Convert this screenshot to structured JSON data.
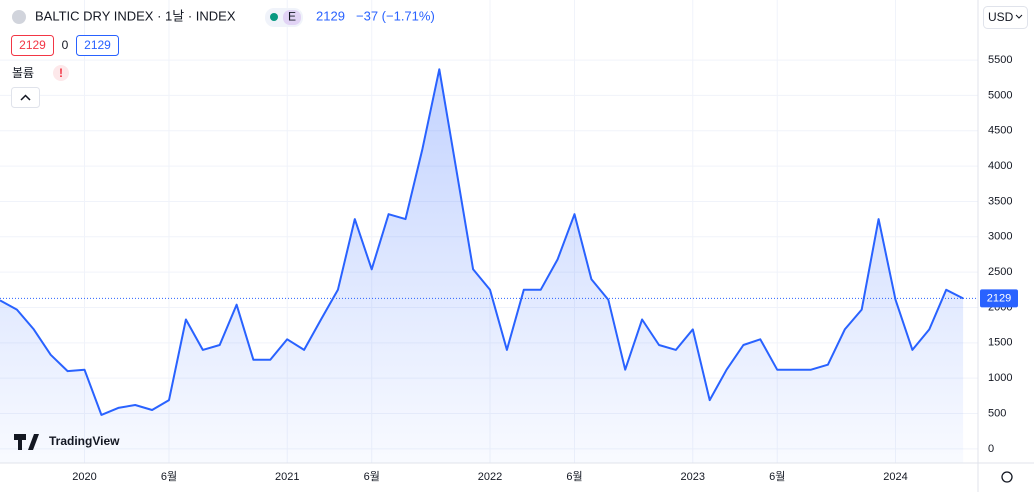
{
  "header": {
    "symbol": "BALTIC DRY INDEX · 1날 · INDEX",
    "badge": "E",
    "last": "2129",
    "change": "−37 (−1.71%)",
    "sell": "2129",
    "spread": "0",
    "buy": "2129",
    "volume": "볼륨",
    "alert": "!",
    "currency": "USD",
    "logo": "TradingView"
  },
  "chart_data": {
    "type": "area",
    "color": "#2962ff",
    "x": [
      "2019-08",
      "2019-09",
      "2019-10",
      "2019-11",
      "2019-12",
      "2020-01",
      "2020-02",
      "2020-03",
      "2020-04",
      "2020-05",
      "2020-06",
      "2020-07",
      "2020-08",
      "2020-09",
      "2020-10",
      "2020-11",
      "2020-12",
      "2021-01",
      "2021-02",
      "2021-03",
      "2021-04",
      "2021-05",
      "2021-06",
      "2021-07",
      "2021-08",
      "2021-09",
      "2021-10",
      "2021-11",
      "2021-12",
      "2022-01",
      "2022-02",
      "2022-03",
      "2022-04",
      "2022-05",
      "2022-06",
      "2022-07",
      "2022-08",
      "2022-09",
      "2022-10",
      "2022-11",
      "2022-12",
      "2023-01",
      "2023-02",
      "2023-03",
      "2023-04",
      "2023-05",
      "2023-06",
      "2023-07",
      "2023-08",
      "2023-09",
      "2023-10",
      "2023-11",
      "2023-12",
      "2024-01",
      "2024-02",
      "2024-03",
      "2024-04",
      "2024-05"
    ],
    "values": [
      2100,
      1970,
      1690,
      1330,
      1100,
      1120,
      480,
      580,
      620,
      550,
      690,
      1830,
      1400,
      1470,
      2040,
      1260,
      1260,
      1550,
      1400,
      1830,
      2250,
      3250,
      2540,
      3320,
      3250,
      4240,
      5370,
      3960,
      2540,
      2250,
      1400,
      2250,
      2250,
      2680,
      3320,
      2400,
      2110,
      1120,
      1830,
      1470,
      1400,
      1690,
      690,
      1120,
      1470,
      1550,
      1120,
      1120,
      1120,
      1190,
      1690,
      1970,
      3250,
      2110,
      1400,
      1690,
      2250,
      2129
    ],
    "last_value": 2129,
    "xlim": [
      "2019-08",
      "2024-06"
    ],
    "xticks": [
      {
        "value": "2020-01",
        "label": "2020"
      },
      {
        "value": "2020-06",
        "label": "6월"
      },
      {
        "value": "2021-01",
        "label": "2021"
      },
      {
        "value": "2021-06",
        "label": "6월"
      },
      {
        "value": "2022-01",
        "label": "2022"
      },
      {
        "value": "2022-06",
        "label": "6월"
      },
      {
        "value": "2023-01",
        "label": "2023"
      },
      {
        "value": "2023-06",
        "label": "6월"
      },
      {
        "value": "2024-01",
        "label": "2024"
      }
    ],
    "ylim": [
      -200,
      6350
    ],
    "yticks": [
      0,
      500,
      1000,
      1500,
      2000,
      2500,
      3000,
      3500,
      4000,
      4500,
      5000,
      5500
    ],
    "grid": true
  }
}
